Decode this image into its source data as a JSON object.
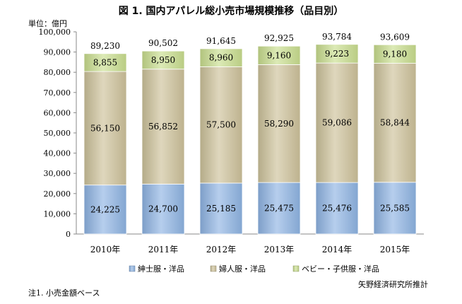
{
  "chart_data": {
    "type": "bar",
    "stacked": true,
    "title": "図 1. 国内アパレル総小売市場規模推移（品目別）",
    "unit_label": "単位：億円",
    "categories": [
      "2010年",
      "2011年",
      "2012年",
      "2013年",
      "2014年",
      "2015年"
    ],
    "series": [
      {
        "name": "紳士服・洋品",
        "values": [
          24225,
          24700,
          25185,
          25475,
          25476,
          25585
        ],
        "labels": [
          "24,225",
          "24,700",
          "25,185",
          "25,475",
          "25,476",
          "25,585"
        ],
        "color": "#8eb4e3"
      },
      {
        "name": "婦人服・洋品",
        "values": [
          56150,
          56852,
          57500,
          58290,
          59086,
          58844
        ],
        "labels": [
          "56,150",
          "56,852",
          "57,500",
          "58,290",
          "59,086",
          "58,844"
        ],
        "color": "#cdc29a"
      },
      {
        "name": "ベビー・子供服・洋品",
        "values": [
          8855,
          8950,
          8960,
          9160,
          9223,
          9180
        ],
        "labels": [
          "8,855",
          "8,950",
          "8,960",
          "9,160",
          "9,223",
          "9,180"
        ],
        "color": "#c9de8e"
      }
    ],
    "totals": [
      "89,230",
      "90,502",
      "91,645",
      "92,925",
      "93,784",
      "93,609"
    ],
    "ylim": [
      0,
      100000
    ],
    "yticks": [
      "0",
      "10,000",
      "20,000",
      "30,000",
      "40,000",
      "50,000",
      "60,000",
      "70,000",
      "80,000",
      "90,000",
      "100,000"
    ],
    "grid": false,
    "legend": "bottom"
  },
  "note": "注1. 小売金額ベース",
  "source": "矢野経済研究所推計"
}
